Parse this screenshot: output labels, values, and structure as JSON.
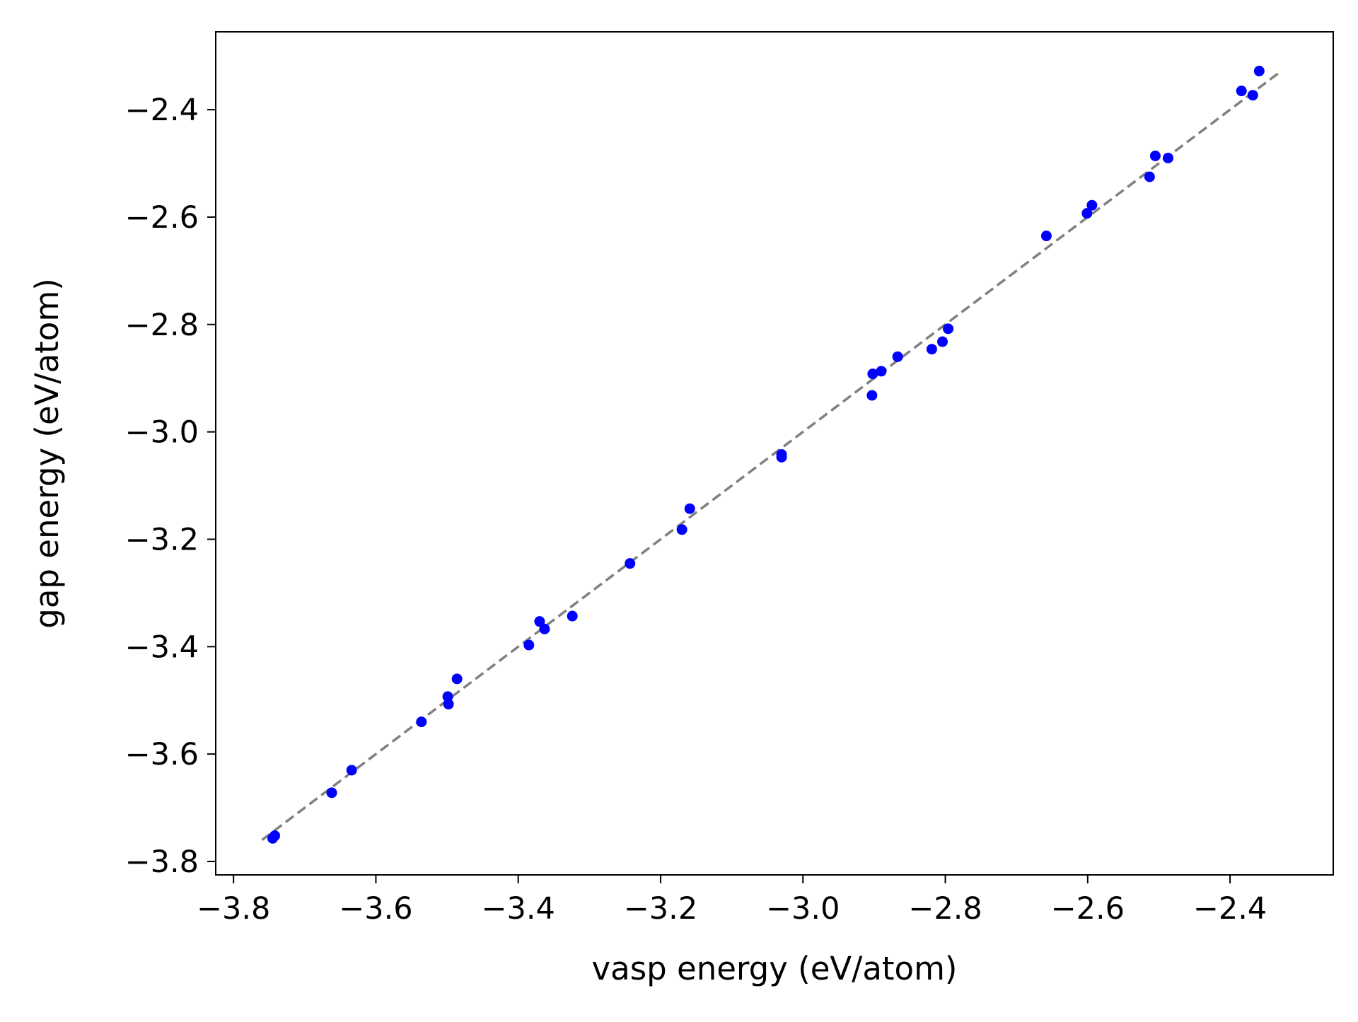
{
  "chart_data": {
    "type": "scatter",
    "title": "",
    "xlabel": "vasp energy (eV/atom)",
    "ylabel": "gap energy (eV/atom)",
    "xlim": [
      -3.825,
      -2.255
    ],
    "ylim": [
      -3.825,
      -2.255
    ],
    "x_ticks": [
      -3.8,
      -3.6,
      -3.4,
      -3.2,
      -3.0,
      -2.8,
      -2.6,
      -2.4
    ],
    "x_tick_labels": [
      "−3.8",
      "−3.6",
      "−3.4",
      "−3.2",
      "−3.0",
      "−2.8",
      "−2.6",
      "−2.4"
    ],
    "y_ticks": [
      -3.8,
      -3.6,
      -3.4,
      -3.2,
      -3.0,
      -2.8,
      -2.6,
      -2.4
    ],
    "y_tick_labels": [
      "−3.8",
      "−3.6",
      "−3.4",
      "−3.2",
      "−3.0",
      "−2.8",
      "−2.6",
      "−2.4"
    ],
    "grid": false,
    "legend": false,
    "point_color": "#0000ff",
    "reference_line_color": "#808080",
    "reference_line": {
      "style": "dashed",
      "x": [
        -3.76,
        -2.33
      ],
      "y": [
        -3.76,
        -2.33
      ]
    },
    "points": [
      {
        "x": -3.742,
        "y": -3.752
      },
      {
        "x": -3.745,
        "y": -3.757
      },
      {
        "x": -3.662,
        "y": -3.672
      },
      {
        "x": -3.634,
        "y": -3.63
      },
      {
        "x": -3.536,
        "y": -3.54
      },
      {
        "x": -3.499,
        "y": -3.493
      },
      {
        "x": -3.498,
        "y": -3.507
      },
      {
        "x": -3.486,
        "y": -3.46
      },
      {
        "x": -3.385,
        "y": -3.397
      },
      {
        "x": -3.37,
        "y": -3.353
      },
      {
        "x": -3.363,
        "y": -3.367
      },
      {
        "x": -3.324,
        "y": -3.343
      },
      {
        "x": -3.243,
        "y": -3.245
      },
      {
        "x": -3.17,
        "y": -3.182
      },
      {
        "x": -3.159,
        "y": -3.143
      },
      {
        "x": -3.03,
        "y": -3.042
      },
      {
        "x": -3.03,
        "y": -3.047
      },
      {
        "x": -2.902,
        "y": -2.892
      },
      {
        "x": -2.89,
        "y": -2.887
      },
      {
        "x": -2.903,
        "y": -2.932
      },
      {
        "x": -2.867,
        "y": -2.86
      },
      {
        "x": -2.819,
        "y": -2.846
      },
      {
        "x": -2.804,
        "y": -2.832
      },
      {
        "x": -2.796,
        "y": -2.808
      },
      {
        "x": -2.658,
        "y": -2.635
      },
      {
        "x": -2.601,
        "y": -2.593
      },
      {
        "x": -2.594,
        "y": -2.578
      },
      {
        "x": -2.513,
        "y": -2.525
      },
      {
        "x": -2.505,
        "y": -2.486
      },
      {
        "x": -2.487,
        "y": -2.49
      },
      {
        "x": -2.384,
        "y": -2.365
      },
      {
        "x": -2.368,
        "y": -2.373
      },
      {
        "x": -2.359,
        "y": -2.328
      }
    ]
  }
}
